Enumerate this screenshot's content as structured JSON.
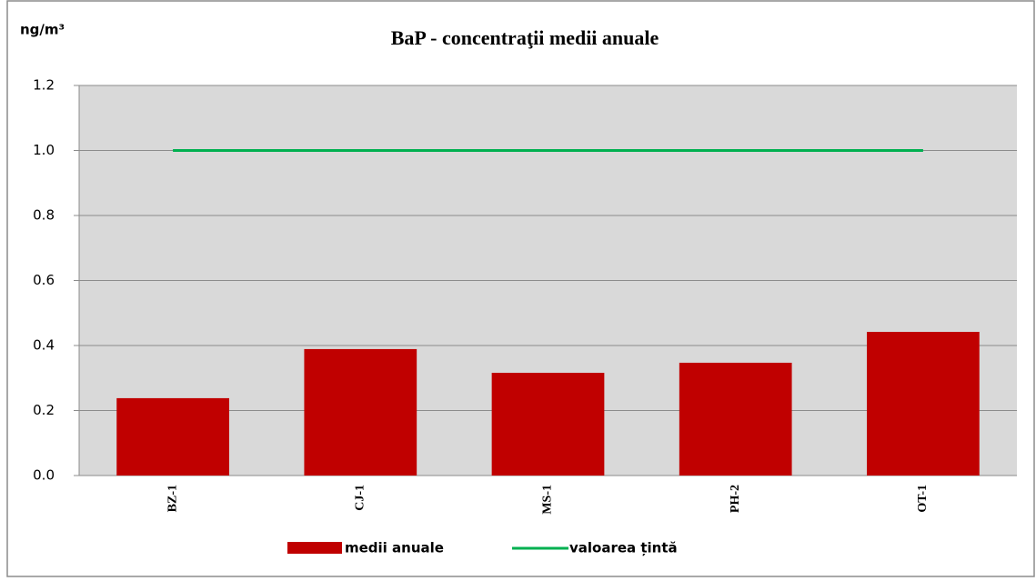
{
  "chart_data": {
    "type": "bar",
    "title": "BaP - concentraţii medii anuale",
    "y_label": "ng/m³",
    "categories": [
      "BZ-1",
      "CJ-1",
      "MS-1",
      "PH-2",
      "OT-1"
    ],
    "series": [
      {
        "name": "medii anuale",
        "type": "bar",
        "color": "#c00000",
        "values": [
          0.238,
          0.389,
          0.316,
          0.347,
          0.442
        ]
      },
      {
        "name": "valoarea țintă",
        "type": "line",
        "color": "#00b050",
        "values": [
          1.0,
          1.0,
          1.0,
          1.0,
          1.0
        ]
      }
    ],
    "ylim": [
      0,
      1.2
    ],
    "yticks": [
      {
        "value": 0,
        "label": "0.0"
      },
      0.2,
      0.4,
      0.6,
      0.8,
      {
        "value": 1.0,
        "label": "1.0"
      },
      1.2
    ],
    "grid": true,
    "legend": "bottom"
  }
}
